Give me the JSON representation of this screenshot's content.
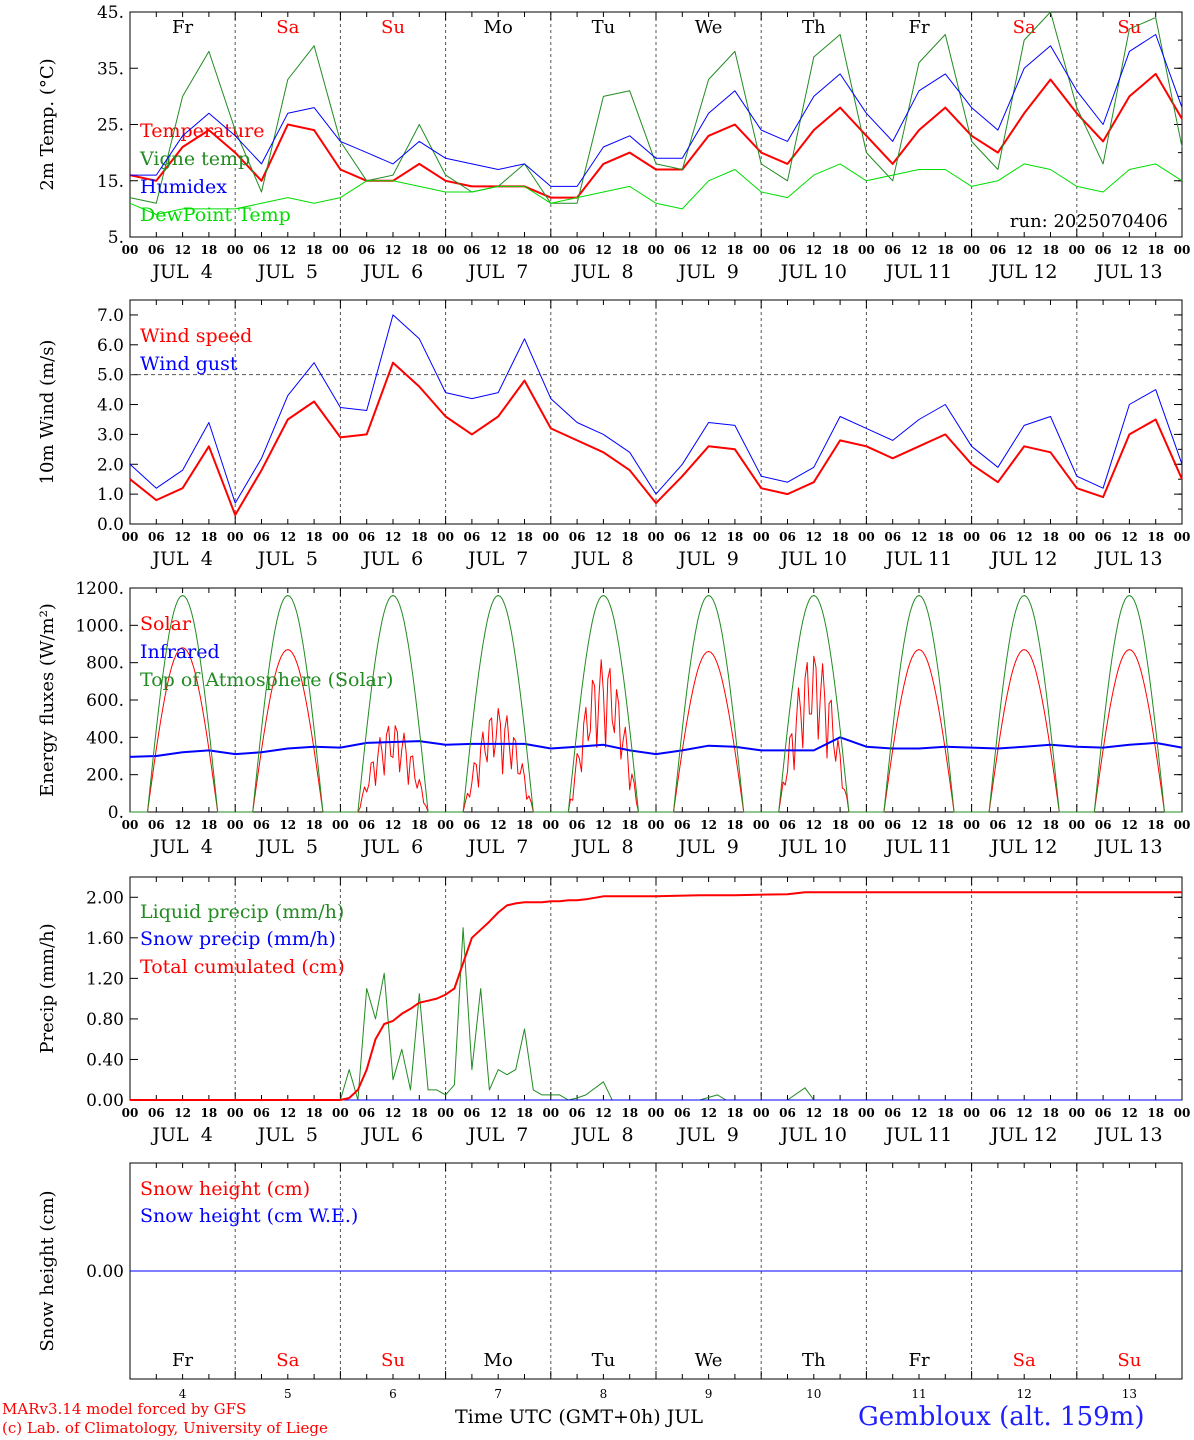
{
  "chart_data": [
    {
      "type": "line",
      "ylabel": "2m Temp. (°C)",
      "ylim": [
        5,
        45
      ],
      "yticks": [
        "5.",
        "15.",
        "25.",
        "35.",
        "45."
      ],
      "ytick_values": [
        5,
        15,
        25,
        35,
        45
      ],
      "run_label": "run: 2025070406",
      "day_labels": [
        "Fr",
        "Sa",
        "Su",
        "Mo",
        "Tu",
        "We",
        "Th",
        "Fr",
        "Sa",
        "Su"
      ],
      "day_label_colors": [
        "#000000",
        "#ff0000",
        "#ff0000",
        "#000000",
        "#000000",
        "#000000",
        "#000000",
        "#000000",
        "#ff0000",
        "#ff0000"
      ],
      "x_hours": [
        0,
        6,
        12,
        18,
        24,
        30,
        36,
        42,
        48,
        54,
        60,
        66,
        72,
        78,
        84,
        90,
        96,
        102,
        108,
        114,
        120,
        126,
        132,
        138,
        144,
        150,
        156,
        162,
        168,
        174,
        180,
        186,
        192,
        198,
        204,
        210,
        216,
        222,
        228,
        234,
        240
      ],
      "series": [
        {
          "name": "Temperature",
          "color": "#ff0000",
          "width": 2,
          "values": [
            16,
            15,
            21,
            24,
            20,
            15,
            25,
            24,
            17,
            15,
            15,
            18,
            15,
            14,
            14,
            14,
            12,
            12,
            18,
            20,
            17,
            17,
            23,
            25,
            20,
            18,
            24,
            28,
            23,
            18,
            24,
            28,
            23,
            20,
            27,
            33,
            27,
            22,
            30,
            34,
            26
          ]
        },
        {
          "name": "Vigne temp",
          "color": "#228b22",
          "width": 1,
          "values": [
            12,
            11,
            30,
            38,
            24,
            13,
            33,
            39,
            22,
            15,
            16,
            25,
            16,
            13,
            14,
            18,
            11,
            11,
            30,
            31,
            18,
            17,
            33,
            38,
            18,
            15,
            37,
            41,
            20,
            15,
            36,
            41,
            22,
            17,
            40,
            45,
            28,
            18,
            42,
            44,
            21
          ]
        },
        {
          "name": "Humidex",
          "color": "#0000ff",
          "width": 1,
          "values": [
            16,
            16,
            23,
            27,
            23,
            18,
            27,
            28,
            22,
            20,
            18,
            22,
            19,
            18,
            17,
            18,
            14,
            14,
            21,
            23,
            19,
            19,
            27,
            31,
            24,
            22,
            30,
            34,
            27,
            22,
            31,
            34,
            28,
            24,
            35,
            39,
            31,
            25,
            38,
            41,
            28
          ]
        },
        {
          "name": "DewPoint Temp",
          "color": "#00dd00",
          "width": 1,
          "values": [
            11,
            9,
            10,
            10,
            10,
            11,
            12,
            11,
            12,
            15,
            15,
            14,
            13,
            13,
            14,
            14,
            11,
            12,
            13,
            14,
            11,
            10,
            15,
            17,
            13,
            12,
            16,
            18,
            15,
            16,
            17,
            17,
            14,
            15,
            18,
            17,
            14,
            13,
            17,
            18,
            15
          ]
        }
      ]
    },
    {
      "type": "line",
      "ylabel": "10m Wind (m/s)",
      "ylim": [
        0,
        7.5
      ],
      "yticks": [
        "0.0",
        "1.0",
        "2.0",
        "3.0",
        "4.0",
        "5.0",
        "6.0",
        "7.0"
      ],
      "ytick_values": [
        0,
        1,
        2,
        3,
        4,
        5,
        6,
        7
      ],
      "reference_line": 5.0,
      "x_hours": [
        0,
        6,
        12,
        18,
        24,
        30,
        36,
        42,
        48,
        54,
        60,
        66,
        72,
        78,
        84,
        90,
        96,
        102,
        108,
        114,
        120,
        126,
        132,
        138,
        144,
        150,
        156,
        162,
        168,
        174,
        180,
        186,
        192,
        198,
        204,
        210,
        216,
        222,
        228,
        234,
        240
      ],
      "series": [
        {
          "name": "Wind speed",
          "color": "#ff0000",
          "width": 2,
          "values": [
            1.5,
            0.8,
            1.2,
            2.6,
            0.3,
            1.8,
            3.5,
            4.1,
            2.9,
            3.0,
            5.4,
            4.6,
            3.6,
            3.0,
            3.6,
            4.8,
            3.2,
            2.8,
            2.4,
            1.8,
            0.7,
            1.6,
            2.6,
            2.5,
            1.2,
            1.0,
            1.4,
            2.8,
            2.6,
            2.2,
            2.6,
            3.0,
            2.0,
            1.4,
            2.6,
            2.4,
            1.2,
            0.9,
            3.0,
            3.5,
            1.5
          ]
        },
        {
          "name": "Wind gust",
          "color": "#0000ff",
          "width": 1,
          "values": [
            2.0,
            1.2,
            1.8,
            3.4,
            0.7,
            2.2,
            4.3,
            5.4,
            3.9,
            3.8,
            7.0,
            6.2,
            4.4,
            4.2,
            4.4,
            6.2,
            4.2,
            3.4,
            3.0,
            2.4,
            1.0,
            2.0,
            3.4,
            3.3,
            1.6,
            1.4,
            1.9,
            3.6,
            3.2,
            2.8,
            3.5,
            4.0,
            2.6,
            1.9,
            3.3,
            3.6,
            1.6,
            1.2,
            4.0,
            4.5,
            2.0
          ]
        }
      ]
    },
    {
      "type": "line",
      "ylabel": "Energy fluxes (W/m²)",
      "ylim": [
        0,
        1200
      ],
      "yticks": [
        "0.",
        "200.",
        "400.",
        "600.",
        "800.",
        "1000.",
        "1200."
      ],
      "ytick_values": [
        0,
        200,
        400,
        600,
        800,
        1000,
        1200
      ],
      "daylight": {
        "sunrise_hour": 4,
        "sunset_hour": 20,
        "peak_hour": 12
      },
      "days": [
        4,
        5,
        6,
        7,
        8,
        9,
        10,
        11,
        12,
        13
      ],
      "series": [
        {
          "name": "Solar",
          "color": "#ff0000",
          "width": 1,
          "day_peaks": [
            880,
            870,
            480,
            560,
            820,
            860,
            860,
            870,
            870,
            870
          ],
          "day_peak_noise": [
            0,
            0,
            1,
            1,
            1,
            0,
            1,
            0,
            0,
            0
          ]
        },
        {
          "name": "Infrared",
          "color": "#0000ff",
          "width": 2,
          "x_hours": [
            0,
            6,
            12,
            18,
            24,
            30,
            36,
            42,
            48,
            54,
            60,
            66,
            72,
            78,
            84,
            90,
            96,
            102,
            108,
            114,
            120,
            126,
            132,
            138,
            144,
            150,
            156,
            162,
            168,
            174,
            180,
            186,
            192,
            198,
            204,
            210,
            216,
            222,
            228,
            234,
            240
          ],
          "values": [
            295,
            300,
            320,
            330,
            310,
            320,
            340,
            350,
            345,
            370,
            375,
            380,
            360,
            365,
            365,
            365,
            340,
            350,
            360,
            330,
            310,
            330,
            355,
            350,
            330,
            330,
            330,
            400,
            350,
            340,
            340,
            350,
            345,
            340,
            350,
            360,
            350,
            345,
            360,
            370,
            345
          ]
        },
        {
          "name": "Top of Atmosphere (Solar)",
          "color": "#228b22",
          "width": 1,
          "day_peaks": [
            1160,
            1160,
            1160,
            1160,
            1160,
            1160,
            1160,
            1160,
            1160,
            1160
          ],
          "day_peak_noise": [
            0,
            0,
            0,
            0,
            0,
            0,
            0,
            0,
            0,
            0
          ]
        }
      ]
    },
    {
      "type": "line",
      "ylabel": "Precip (mm/h)",
      "ylim": [
        0,
        2.2
      ],
      "yticks": [
        "0.00",
        "0.40",
        "0.80",
        "1.20",
        "1.60",
        "2.00"
      ],
      "ytick_values": [
        0,
        0.4,
        0.8,
        1.2,
        1.6,
        2.0
      ],
      "x_hours": [
        0,
        48,
        50,
        52,
        54,
        56,
        58,
        60,
        62,
        64,
        66,
        68,
        70,
        72,
        74,
        76,
        78,
        80,
        82,
        84,
        86,
        88,
        90,
        92,
        94,
        96,
        98,
        100,
        102,
        104,
        108,
        110,
        112,
        114,
        120,
        130,
        134,
        136,
        138,
        150,
        154,
        156,
        158,
        160,
        240
      ],
      "series": [
        {
          "name": "Liquid precip (mm/h)",
          "color": "#228b22",
          "width": 1,
          "values": [
            0,
            0,
            0.3,
            0,
            1.1,
            0.8,
            1.25,
            0.2,
            0.5,
            0.1,
            1.05,
            0.1,
            0.1,
            0.05,
            0.15,
            1.7,
            0.3,
            1.1,
            0.1,
            0.3,
            0.25,
            0.3,
            0.7,
            0.1,
            0.05,
            0.05,
            0.05,
            0,
            0.02,
            0.05,
            0.18,
            0,
            0,
            0,
            0,
            0,
            0.05,
            0,
            0,
            0,
            0.12,
            0,
            0,
            0,
            0
          ]
        },
        {
          "name": "Snow precip (mm/h)",
          "color": "#0000ff",
          "width": 1,
          "values": [
            0,
            0,
            0,
            0,
            0,
            0,
            0,
            0,
            0,
            0,
            0,
            0,
            0,
            0,
            0,
            0,
            0,
            0,
            0,
            0,
            0,
            0,
            0,
            0,
            0,
            0,
            0,
            0,
            0,
            0,
            0,
            0,
            0,
            0,
            0,
            0,
            0,
            0,
            0,
            0,
            0,
            0,
            0,
            0,
            0
          ]
        },
        {
          "name": "Total cumulated (cm)",
          "color": "#ff0000",
          "width": 2,
          "values": [
            0,
            0,
            0.02,
            0.1,
            0.3,
            0.6,
            0.75,
            0.78,
            0.85,
            0.9,
            0.96,
            0.98,
            1.0,
            1.04,
            1.1,
            1.35,
            1.6,
            1.68,
            1.76,
            1.85,
            1.92,
            1.94,
            1.95,
            1.95,
            1.95,
            1.96,
            1.96,
            1.97,
            1.97,
            1.98,
            2.01,
            2.01,
            2.01,
            2.01,
            2.01,
            2.02,
            2.02,
            2.02,
            2.02,
            2.03,
            2.05,
            2.05,
            2.05,
            2.05,
            2.05
          ]
        }
      ]
    },
    {
      "type": "line",
      "ylabel": "Snow height (cm)",
      "ylim": [
        -1,
        1
      ],
      "yticks": [
        "0.00"
      ],
      "ytick_values": [
        0
      ],
      "x_hours": [
        0,
        240
      ],
      "series": [
        {
          "name": "Snow height (cm)",
          "color": "#ff0000",
          "width": 1,
          "values": [
            0,
            0
          ]
        },
        {
          "name": "Snow height (cm W.E.)",
          "color": "#0000ff",
          "width": 1,
          "values": [
            0,
            0
          ]
        }
      ],
      "day_labels": [
        "Fr",
        "Sa",
        "Su",
        "Mo",
        "Tu",
        "We",
        "Th",
        "Fr",
        "Sa",
        "Su"
      ],
      "day_label_colors": [
        "#000000",
        "#ff0000",
        "#ff0000",
        "#000000",
        "#000000",
        "#000000",
        "#000000",
        "#000000",
        "#ff0000",
        "#ff0000"
      ],
      "day_numbers": [
        "4",
        "5",
        "6",
        "7",
        "8",
        "9",
        "10",
        "11",
        "12",
        "13"
      ]
    }
  ],
  "x_axis": {
    "hour_ticks": [
      "00",
      "06",
      "12",
      "18"
    ],
    "date_labels": [
      "JUL  4",
      "JUL  5",
      "JUL  6",
      "JUL  7",
      "JUL  8",
      "JUL  9",
      "JUL 10",
      "JUL 11",
      "JUL 12",
      "JUL 13"
    ],
    "title": "Time UTC (GMT+0h) JUL"
  },
  "footer": {
    "credit_line1": "MARv3.14 model forced by GFS",
    "credit_line2": "(c) Lab. of Climatology, University of Liege",
    "station": "Gembloux (alt. 159m)"
  }
}
